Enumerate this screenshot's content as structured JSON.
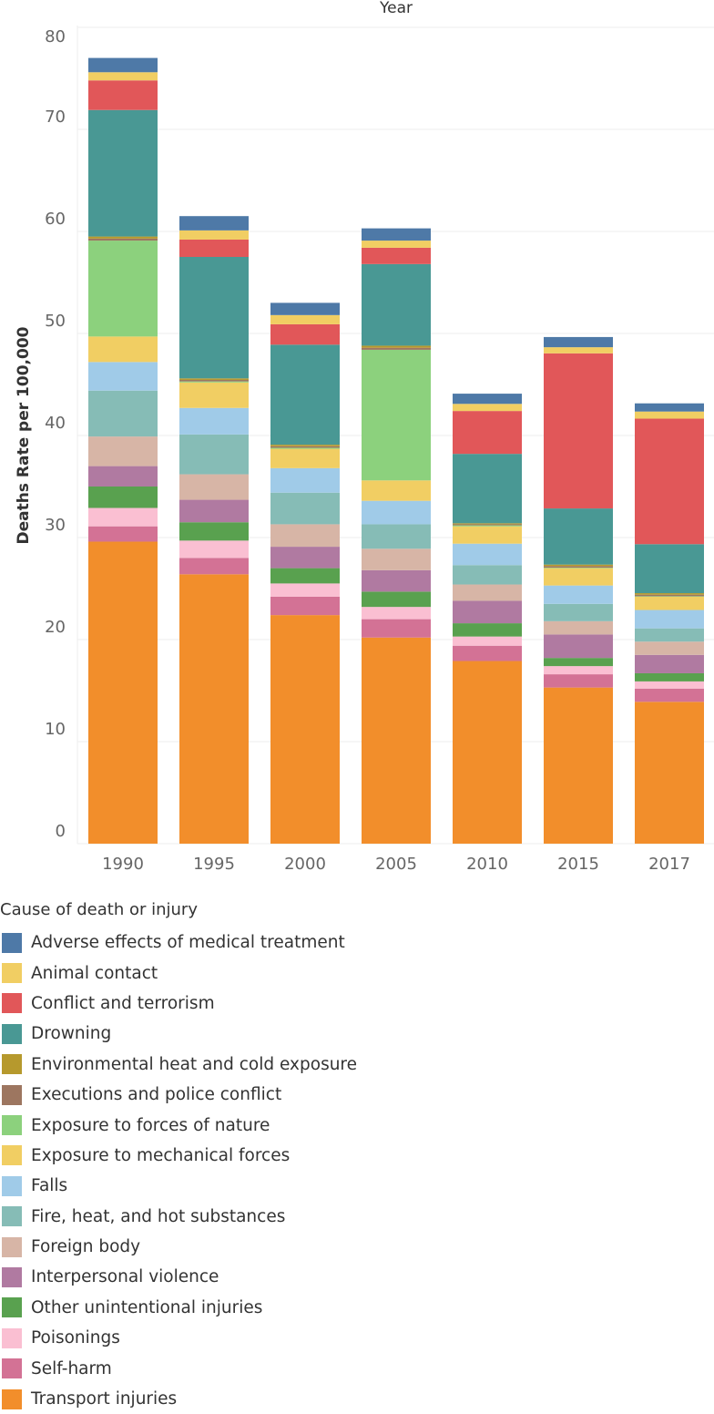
{
  "chart_data": {
    "type": "bar",
    "stacked": true,
    "title": "Year",
    "xlabel": "",
    "ylabel": "Deaths Rate per 100,000",
    "ylim": [
      0,
      80
    ],
    "yticks": [
      0,
      10,
      20,
      30,
      40,
      50,
      60,
      70,
      80
    ],
    "grid": true,
    "legend_title": "Cause of death or injury",
    "legend_position": "bottom",
    "categories": [
      "1990",
      "1995",
      "2000",
      "2005",
      "2010",
      "2015",
      "2017"
    ],
    "series": [
      {
        "name": "Transport injuries",
        "color": "#f28e2b",
        "values": [
          29.6,
          26.4,
          22.4,
          20.2,
          17.9,
          15.3,
          13.9
        ]
      },
      {
        "name": "Self-harm",
        "color": "#d37295",
        "values": [
          1.5,
          1.6,
          1.8,
          1.8,
          1.5,
          1.3,
          1.3
        ]
      },
      {
        "name": "Poisonings",
        "color": "#fabfd2",
        "values": [
          1.8,
          1.7,
          1.3,
          1.2,
          0.9,
          0.8,
          0.7
        ]
      },
      {
        "name": "Other unintentional injuries",
        "color": "#59a14f",
        "values": [
          2.1,
          1.8,
          1.5,
          1.5,
          1.3,
          0.8,
          0.8
        ]
      },
      {
        "name": "Interpersonal violence",
        "color": "#b07aa1",
        "values": [
          2.0,
          2.2,
          2.1,
          2.1,
          2.2,
          2.3,
          1.8
        ]
      },
      {
        "name": "Foreign body",
        "color": "#d7b5a6",
        "values": [
          2.9,
          2.5,
          2.2,
          2.1,
          1.6,
          1.3,
          1.3
        ]
      },
      {
        "name": "Fire, heat, and hot substances",
        "color": "#86bcb6",
        "values": [
          4.5,
          3.9,
          3.1,
          2.4,
          1.9,
          1.7,
          1.3
        ]
      },
      {
        "name": "Falls",
        "color": "#a0cbe8",
        "values": [
          2.8,
          2.6,
          2.4,
          2.3,
          2.1,
          1.8,
          1.8
        ]
      },
      {
        "name": "Exposure to mechanical forces",
        "color": "#f1ce63",
        "values": [
          2.5,
          2.5,
          1.9,
          2.0,
          1.7,
          1.7,
          1.3
        ]
      },
      {
        "name": "Exposure to forces of nature",
        "color": "#8cd17d",
        "values": [
          9.4,
          0.1,
          0.1,
          12.8,
          0.1,
          0.05,
          0.05
        ]
      },
      {
        "name": "Executions and police conflict",
        "color": "#9d7660",
        "values": [
          0.2,
          0.15,
          0.15,
          0.2,
          0.1,
          0.15,
          0.15
        ]
      },
      {
        "name": "Environmental heat and cold exposure",
        "color": "#b6992d",
        "values": [
          0.2,
          0.15,
          0.15,
          0.2,
          0.1,
          0.15,
          0.15
        ]
      },
      {
        "name": "Drowning",
        "color": "#499894",
        "values": [
          12.4,
          11.9,
          9.8,
          8.0,
          6.8,
          5.5,
          4.8
        ]
      },
      {
        "name": "Conflict and terrorism",
        "color": "#e15759",
        "values": [
          2.9,
          1.7,
          2.0,
          1.6,
          4.2,
          15.2,
          12.3
        ]
      },
      {
        "name": "Animal contact",
        "color": "#f1ce63",
        "values": [
          0.8,
          0.9,
          0.9,
          0.7,
          0.7,
          0.6,
          0.7
        ]
      },
      {
        "name": "Adverse effects of medical treatment",
        "color": "#4e79a7",
        "values": [
          1.4,
          1.4,
          1.2,
          1.2,
          1.0,
          1.0,
          0.8
        ]
      }
    ]
  }
}
